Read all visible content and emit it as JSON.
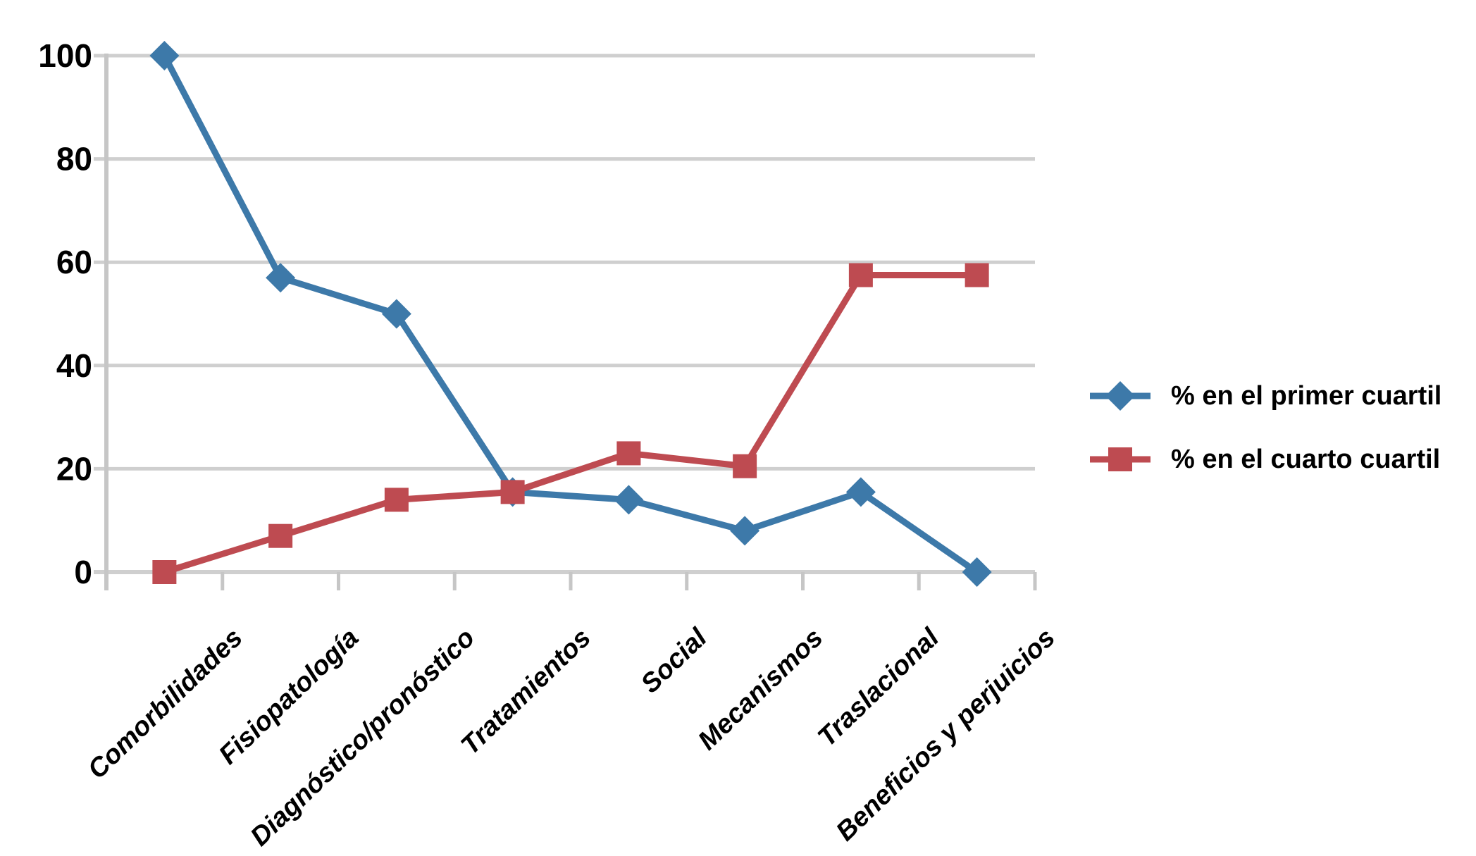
{
  "chart_data": {
    "type": "line",
    "categories": [
      "Comorbilidades",
      "Fisiopatología",
      "Diagnóstico/pronóstico",
      "Tratamientos",
      "Social",
      "Mecanismos",
      "Traslacional",
      "Beneficios y perjuicios"
    ],
    "series": [
      {
        "name": "% en el primer cuartil",
        "marker": "diamond",
        "color": "#3D79A9",
        "values": [
          100,
          57,
          50,
          15.5,
          14,
          8,
          15.5,
          0
        ]
      },
      {
        "name": "% en el cuarto cuartil",
        "marker": "square",
        "color": "#BE4B51",
        "values": [
          0,
          7,
          14,
          15.5,
          23,
          20.5,
          57.5,
          57.5
        ]
      }
    ],
    "y_axis": {
      "min": 0,
      "max": 100,
      "tick_step": 20,
      "tick_labels": [
        "0",
        "20",
        "40",
        "60",
        "80",
        "100"
      ]
    },
    "x_axis": {
      "label_rotation_deg": -44
    },
    "grid": "horizontal",
    "legend_position": "right",
    "colors": {
      "background": "#FFFFFF",
      "gridline": "#CFCFCF",
      "axis": "#C6C6C6",
      "text": "#000000"
    }
  }
}
